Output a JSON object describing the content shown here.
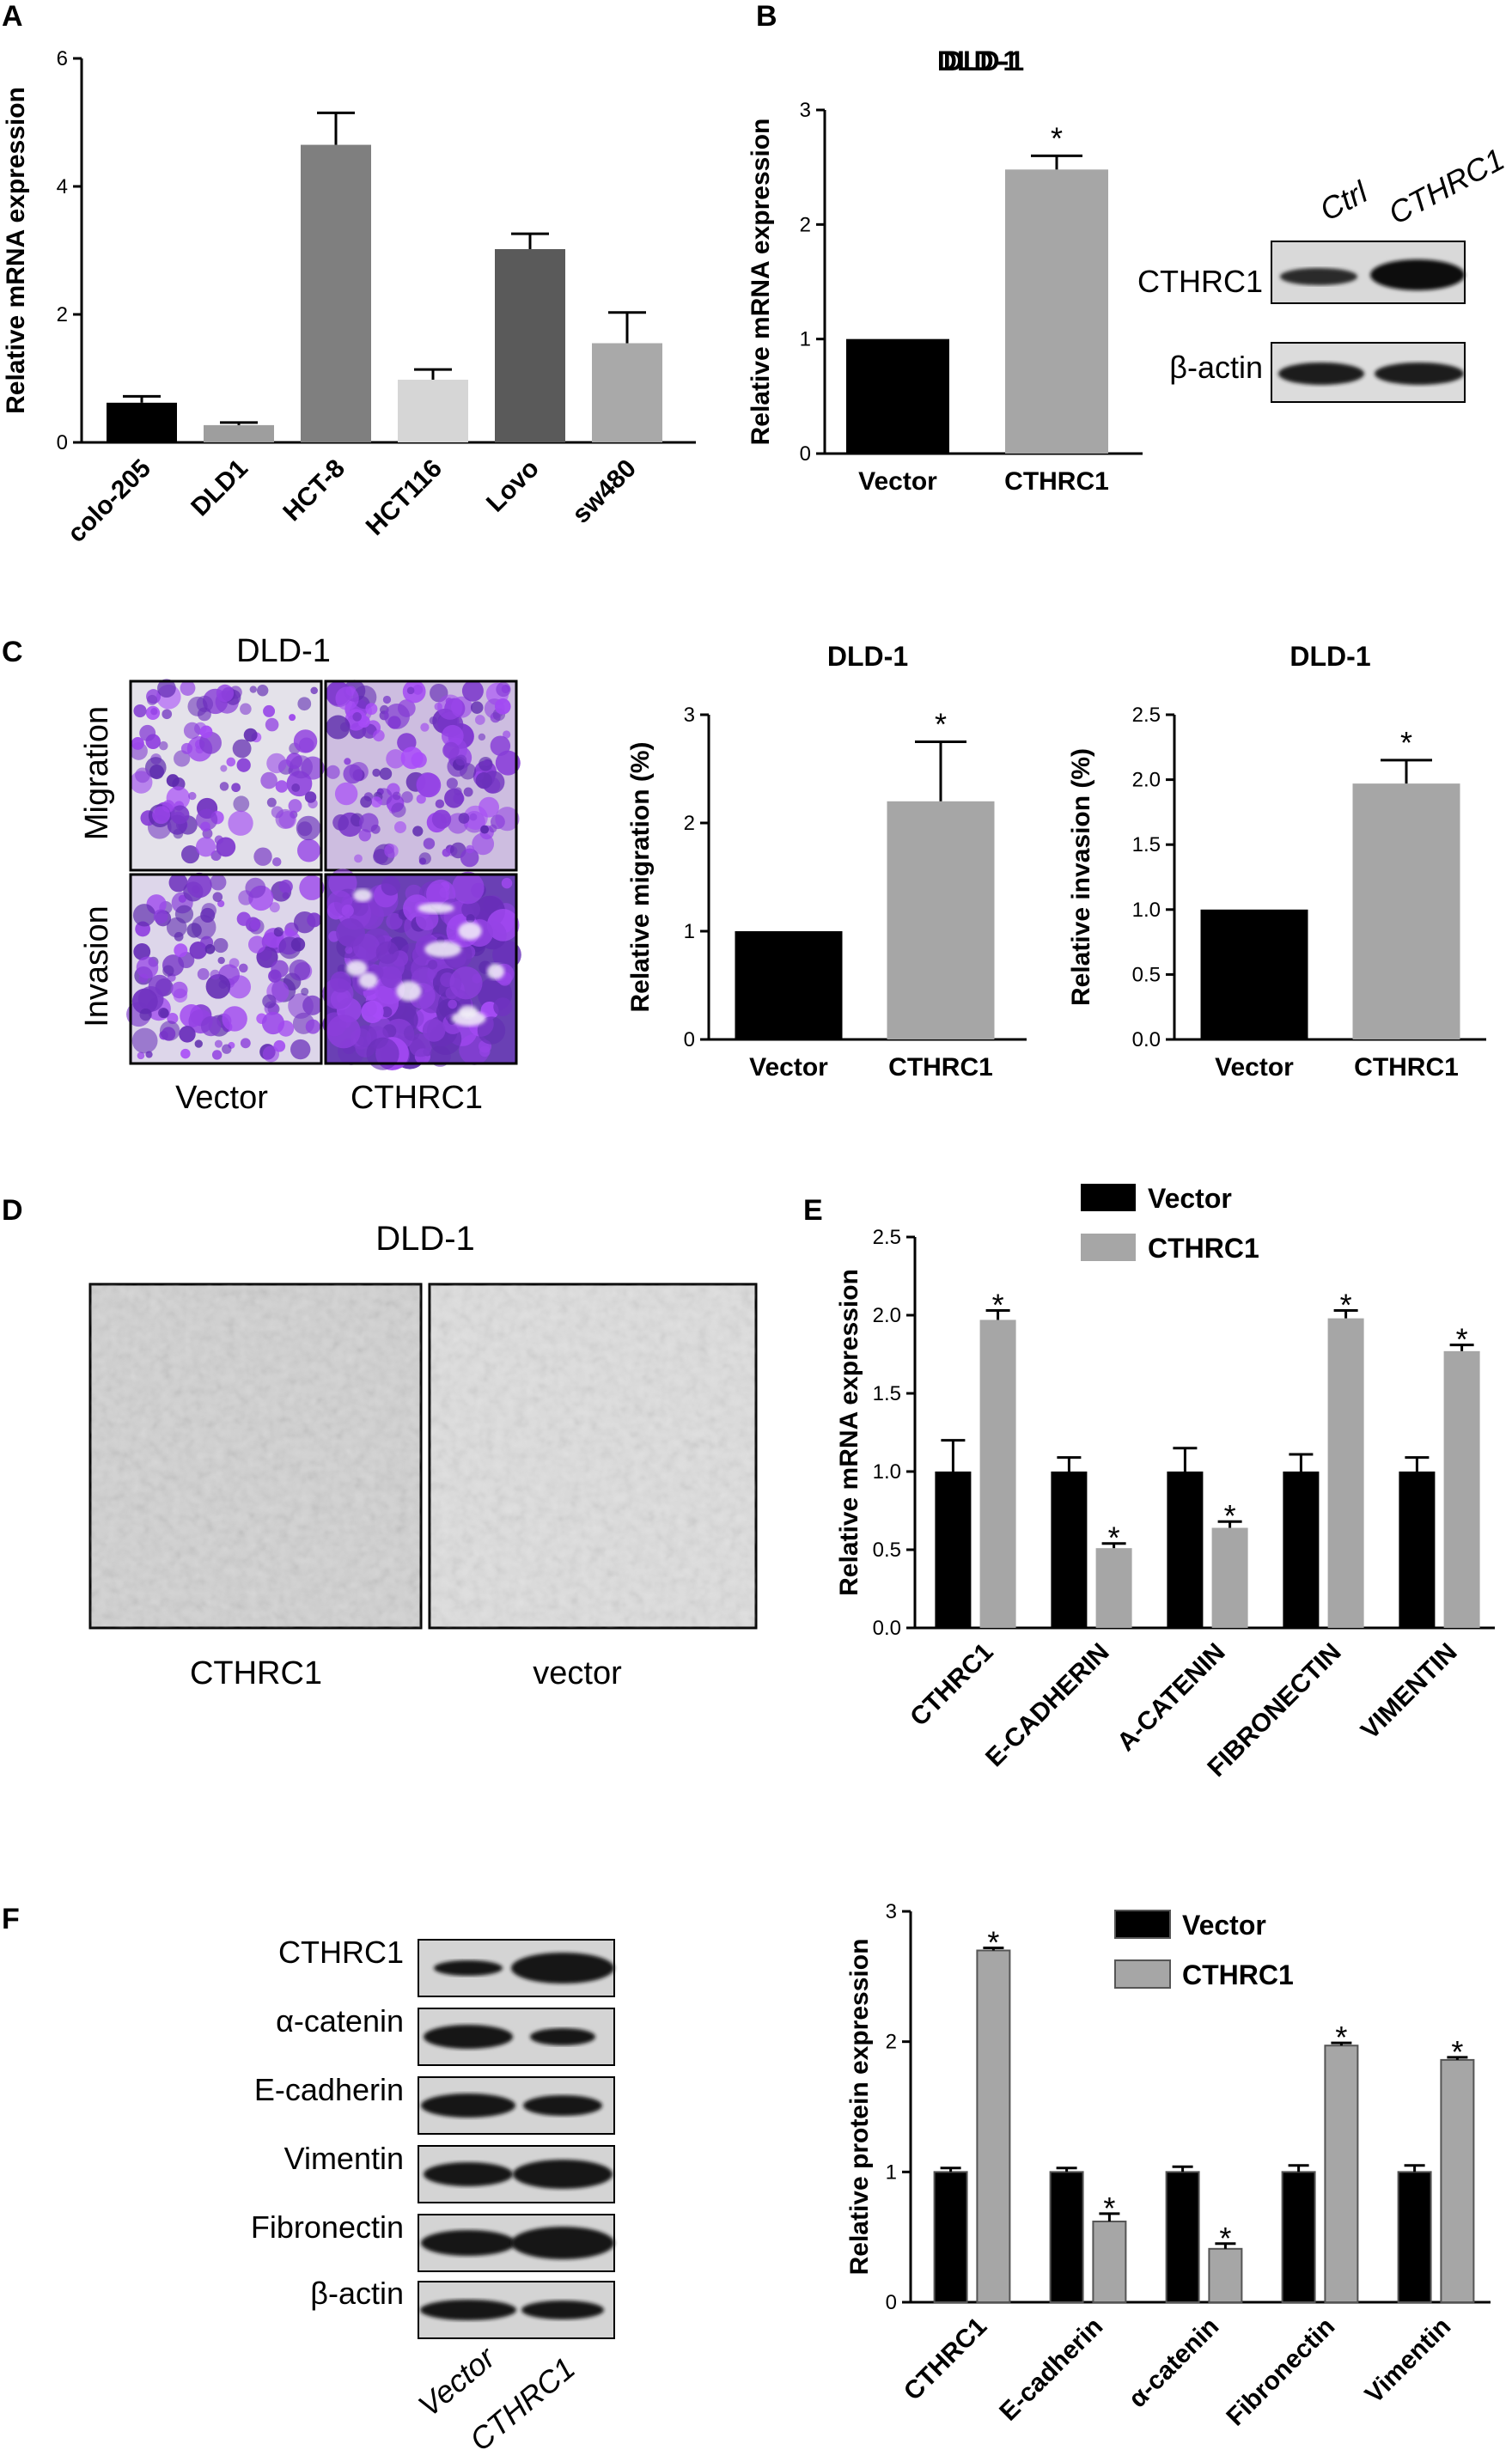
{
  "panels": {
    "A": "A",
    "B": "B",
    "C": "C",
    "D": "D",
    "E": "E",
    "F": "F"
  },
  "panel_B": {
    "title": "DLD-1",
    "blot_labels": [
      "CTHRC1",
      "β-actin"
    ],
    "blot_lanes": [
      "Ctrl",
      "CTHRC1"
    ]
  },
  "panel_C": {
    "image_title": "DLD-1",
    "row_labels": [
      "Migration",
      "Invasion"
    ],
    "col_labels": [
      "Vector",
      "CTHRC1"
    ]
  },
  "panel_D": {
    "title": "DLD-1",
    "labels": [
      "CTHRC1",
      "vector"
    ]
  },
  "panel_F": {
    "blot_labels": [
      "CTHRC1",
      "α-catenin",
      "E-cadherin",
      "Vimentin",
      "Fibronectin",
      "β-actin"
    ],
    "lanes": [
      "Vector",
      "CTHRC1"
    ]
  },
  "colors": {
    "black": "#000000",
    "gray": "#a6a6a6",
    "sig": "*"
  },
  "chart_data": [
    {
      "id": "A",
      "type": "bar",
      "ylabel": "Relative mRNA expression",
      "ylim": [
        0,
        6
      ],
      "yticks": [
        0,
        2,
        4,
        6
      ],
      "categories": [
        "colo-205",
        "DLD1",
        "HCT-8",
        "HCT116",
        "Lovo",
        "sw480"
      ],
      "values": [
        0.62,
        0.27,
        4.65,
        0.98,
        3.02,
        1.55
      ],
      "errors": [
        0.1,
        0.04,
        0.5,
        0.16,
        0.24,
        0.48
      ],
      "bar_colors": [
        "#000000",
        "#9e9e9e",
        "#7f7f7f",
        "#d6d6d6",
        "#5a5a5a",
        "#a9a9a9"
      ]
    },
    {
      "id": "B",
      "type": "bar",
      "title": "DLD-1",
      "ylabel": "Relative mRNA expression",
      "ylim": [
        0,
        3
      ],
      "yticks": [
        0,
        1,
        2,
        3
      ],
      "categories": [
        "Vector",
        "CTHRC1"
      ],
      "values": [
        1.0,
        2.48
      ],
      "errors": [
        0,
        0.12
      ],
      "sig": [
        "",
        "*"
      ]
    },
    {
      "id": "C1",
      "type": "bar",
      "title": "DLD-1",
      "ylabel": "Relative migration (%)",
      "ylim": [
        0,
        3
      ],
      "yticks": [
        0,
        1,
        2,
        3
      ],
      "categories": [
        "Vector",
        "CTHRC1"
      ],
      "values": [
        1.0,
        2.2
      ],
      "errors": [
        0,
        0.55
      ],
      "sig": [
        "",
        "*"
      ]
    },
    {
      "id": "C2",
      "type": "bar",
      "title": "DLD-1",
      "ylabel": "Relative invasion (%)",
      "ylim": [
        0,
        2.5
      ],
      "yticks": [
        "0.0",
        "0.5",
        "1.0",
        "1.5",
        "2.0",
        "2.5"
      ],
      "categories": [
        "Vector",
        "CTHRC1"
      ],
      "values": [
        1.0,
        1.97
      ],
      "errors": [
        0,
        0.18
      ],
      "sig": [
        "",
        "*"
      ]
    },
    {
      "id": "E",
      "type": "bar",
      "ylabel": "Relative mRNA expression",
      "ylim": [
        0,
        2.5
      ],
      "yticks": [
        "0.0",
        "0.5",
        "1.0",
        "1.5",
        "2.0",
        "2.5"
      ],
      "categories": [
        "CTHRC1",
        "E-CADHERIN",
        "A-CATENIN",
        "FIBRONECTIN",
        "VIMENTIN"
      ],
      "series": [
        {
          "name": "Vector",
          "values": [
            1.0,
            1.0,
            1.0,
            1.0,
            1.0
          ],
          "errors": [
            0.2,
            0.09,
            0.15,
            0.11,
            0.09
          ],
          "sig": [
            "",
            "",
            "",
            "",
            ""
          ]
        },
        {
          "name": "CTHRC1",
          "values": [
            1.97,
            0.51,
            0.64,
            1.98,
            1.77
          ],
          "errors": [
            0.06,
            0.03,
            0.04,
            0.05,
            0.04
          ],
          "sig": [
            "*",
            "*",
            "*",
            "*",
            "*"
          ]
        }
      ],
      "legend": "top"
    },
    {
      "id": "F",
      "type": "bar",
      "ylabel": "Relative protein expression",
      "ylim": [
        0,
        3
      ],
      "yticks": [
        0,
        1,
        2,
        3
      ],
      "categories": [
        "CTHRC1",
        "E-cadherin",
        "α-catenin",
        "Fibronectin",
        "Vimentin"
      ],
      "series": [
        {
          "name": "Vector",
          "values": [
            1.0,
            1.0,
            1.0,
            1.0,
            1.0
          ],
          "errors": [
            0.03,
            0.03,
            0.04,
            0.05,
            0.05
          ],
          "sig": [
            "",
            "",
            "",
            "",
            ""
          ]
        },
        {
          "name": "CTHRC1",
          "values": [
            2.7,
            0.62,
            0.41,
            1.97,
            1.86
          ],
          "errors": [
            0.02,
            0.06,
            0.04,
            0.02,
            0.02
          ],
          "sig": [
            "*",
            "*",
            "*",
            "*",
            "*"
          ]
        }
      ],
      "legend": "top-right"
    }
  ]
}
